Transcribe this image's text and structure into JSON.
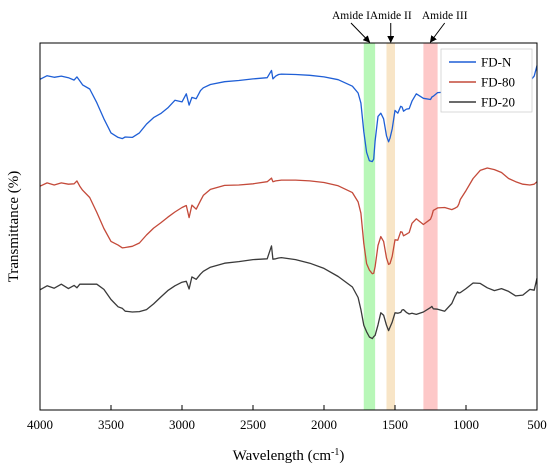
{
  "chart_data": {
    "type": "line",
    "title": "",
    "xlabel": "Wavelength",
    "xlabel_unit": "(cm",
    "xlabel_sup": "-1",
    "xlabel_close": ")",
    "ylabel": "Transmittance (%)",
    "xlim": [
      4000,
      500
    ],
    "x_reversed": true,
    "ticks_x": [
      "4000",
      "3500",
      "3000",
      "2500",
      "2000",
      "1500",
      "1000",
      "500"
    ],
    "tick_values_x": [
      4000,
      3500,
      3000,
      2500,
      2000,
      1500,
      1000,
      500
    ],
    "y_tick_labels_shown": false,
    "grid": false,
    "legend_position": "top-right",
    "bands": [
      {
        "label": "Amide I",
        "from": 1720,
        "to": 1640,
        "color": "#7ef07e",
        "opacity": 0.55,
        "label_x": 1810
      },
      {
        "label": "Amide II",
        "from": 1560,
        "to": 1500,
        "color": "#f5dcb4",
        "opacity": 0.75,
        "label_x": 1530
      },
      {
        "label": "Amide III",
        "from": 1300,
        "to": 1200,
        "color": "#fb9a9a",
        "opacity": 0.55,
        "label_x": 1150
      }
    ],
    "series": [
      {
        "name": "FD-N",
        "color": "#1f5fd6",
        "x": [
          4000,
          3950,
          3900,
          3850,
          3800,
          3760,
          3740,
          3720,
          3700,
          3650,
          3600,
          3550,
          3500,
          3450,
          3420,
          3400,
          3350,
          3300,
          3250,
          3200,
          3150,
          3100,
          3050,
          3000,
          2970,
          2950,
          2930,
          2900,
          2870,
          2850,
          2800,
          2700,
          2600,
          2500,
          2400,
          2370,
          2360,
          2340,
          2320,
          2300,
          2200,
          2100,
          2000,
          1900,
          1800,
          1760,
          1740,
          1720,
          1700,
          1680,
          1660,
          1650,
          1640,
          1620,
          1600,
          1580,
          1560,
          1545,
          1535,
          1520,
          1500,
          1480,
          1460,
          1450,
          1440,
          1420,
          1400,
          1380,
          1350,
          1300,
          1250,
          1240,
          1230,
          1200,
          1150,
          1100,
          1080,
          1060,
          1050,
          1040,
          1000,
          950,
          900,
          850,
          800,
          750,
          700,
          650,
          600,
          550,
          520,
          500
        ],
        "y": [
          -1.0,
          -0.1,
          -0.5,
          -0.2,
          -0.6,
          -1.2,
          -0.4,
          -1.4,
          -2.4,
          -3.4,
          -6.8,
          -10.8,
          -14.3,
          -15.4,
          -15.7,
          -15.3,
          -15.4,
          -14.3,
          -12.1,
          -10.5,
          -9.5,
          -8.1,
          -6.2,
          -6.6,
          -4.6,
          -7.4,
          -5.5,
          -5.8,
          -3.8,
          -3.1,
          -2.3,
          -1.6,
          -1.3,
          -0.9,
          -0.6,
          1.2,
          -0.9,
          -0.2,
          0.2,
          0.3,
          0.2,
          0.0,
          -0.4,
          -1.1,
          -2.7,
          -4.4,
          -6.9,
          -14.0,
          -19.1,
          -21.2,
          -21.4,
          -20.8,
          -16.3,
          -10.2,
          -9.4,
          -10.8,
          -15.0,
          -16.5,
          -15.6,
          -13.3,
          -8.7,
          -9.4,
          -7.7,
          -7.9,
          -8.9,
          -8.4,
          -8.3,
          -6.4,
          -4.6,
          -5.7,
          -6.0,
          -5.4,
          -5.2,
          -4.3,
          -4.2,
          -6.0,
          -7.4,
          -7.5,
          -7.5,
          -6.9,
          -4.6,
          -2.6,
          -0.8,
          -0.2,
          0.4,
          0.5,
          -0.6,
          -1.4,
          -1.8,
          -1.5,
          -0.2,
          2.4
        ]
      },
      {
        "name": "FD-80",
        "color": "#c44a3a",
        "x": [
          4000,
          3950,
          3900,
          3850,
          3800,
          3760,
          3740,
          3720,
          3700,
          3650,
          3600,
          3550,
          3500,
          3450,
          3420,
          3400,
          3350,
          3300,
          3250,
          3200,
          3150,
          3100,
          3050,
          3000,
          2970,
          2950,
          2930,
          2900,
          2870,
          2850,
          2800,
          2700,
          2600,
          2500,
          2400,
          2370,
          2360,
          2340,
          2320,
          2300,
          2200,
          2100,
          2000,
          1900,
          1800,
          1760,
          1740,
          1720,
          1700,
          1680,
          1660,
          1650,
          1640,
          1620,
          1600,
          1580,
          1560,
          1545,
          1535,
          1520,
          1500,
          1480,
          1460,
          1450,
          1440,
          1420,
          1400,
          1380,
          1350,
          1300,
          1250,
          1240,
          1230,
          1200,
          1150,
          1100,
          1080,
          1060,
          1050,
          1040,
          1000,
          950,
          900,
          850,
          800,
          750,
          700,
          650,
          600,
          550,
          520,
          500
        ],
        "y": [
          -27.5,
          -26.7,
          -27.2,
          -26.7,
          -27.0,
          -26.9,
          -26.2,
          -27.5,
          -28.5,
          -30.3,
          -34.0,
          -38.0,
          -41.2,
          -42.1,
          -42.8,
          -42.7,
          -42.4,
          -41.6,
          -39.6,
          -37.9,
          -36.6,
          -35.2,
          -33.9,
          -32.8,
          -32.3,
          -35.3,
          -32.2,
          -33.2,
          -31.1,
          -29.8,
          -28.3,
          -27.3,
          -27.2,
          -26.9,
          -26.4,
          -25.5,
          -26.4,
          -26.2,
          -26.1,
          -26.0,
          -26.0,
          -26.2,
          -26.6,
          -27.4,
          -29.1,
          -31.4,
          -34.2,
          -41.7,
          -46.7,
          -48.3,
          -49.2,
          -49.1,
          -47.5,
          -42.2,
          -40.0,
          -41.2,
          -45.3,
          -46.9,
          -46.7,
          -44.9,
          -40.8,
          -40.9,
          -38.8,
          -38.9,
          -39.8,
          -39.4,
          -39.0,
          -36.7,
          -35.6,
          -37.0,
          -35.7,
          -34.8,
          -33.5,
          -32.9,
          -32.8,
          -33.3,
          -33.0,
          -32.6,
          -31.9,
          -30.8,
          -28.6,
          -25.6,
          -23.6,
          -23.0,
          -23.4,
          -24.1,
          -25.6,
          -26.4,
          -27.0,
          -27.2,
          -27.0,
          -26.4
        ]
      },
      {
        "name": "FD-20",
        "color": "#3a3a3a",
        "x": [
          4000,
          3950,
          3900,
          3850,
          3800,
          3760,
          3740,
          3720,
          3700,
          3650,
          3600,
          3550,
          3500,
          3450,
          3420,
          3400,
          3350,
          3300,
          3250,
          3200,
          3150,
          3100,
          3050,
          3000,
          2970,
          2950,
          2930,
          2900,
          2870,
          2850,
          2800,
          2700,
          2600,
          2500,
          2400,
          2370,
          2360,
          2340,
          2320,
          2300,
          2200,
          2100,
          2000,
          1900,
          1800,
          1760,
          1740,
          1720,
          1700,
          1680,
          1660,
          1650,
          1640,
          1620,
          1600,
          1580,
          1560,
          1545,
          1535,
          1520,
          1500,
          1480,
          1460,
          1450,
          1440,
          1420,
          1400,
          1380,
          1350,
          1300,
          1250,
          1240,
          1230,
          1200,
          1150,
          1100,
          1080,
          1060,
          1050,
          1040,
          1000,
          950,
          900,
          850,
          800,
          750,
          700,
          650,
          600,
          550,
          520,
          500
        ],
        "y": [
          -53.2,
          -52.2,
          -52.8,
          -51.8,
          -52.9,
          -52.1,
          -52.7,
          -51.8,
          -51.8,
          -51.8,
          -51.8,
          -53.1,
          -55.6,
          -57.4,
          -57.8,
          -58.5,
          -58.7,
          -58.6,
          -58.1,
          -56.7,
          -55.0,
          -53.4,
          -52.2,
          -51.3,
          -51.1,
          -53.0,
          -50.0,
          -50.6,
          -49.3,
          -48.6,
          -47.6,
          -46.6,
          -46.2,
          -45.7,
          -45.5,
          -42.3,
          -45.6,
          -45.5,
          -45.3,
          -45.2,
          -45.7,
          -46.6,
          -47.9,
          -49.9,
          -52.5,
          -55.1,
          -58.1,
          -62.0,
          -63.6,
          -64.9,
          -65.3,
          -64.8,
          -64.5,
          -61.9,
          -58.9,
          -59.5,
          -62.0,
          -63.3,
          -62.5,
          -61.2,
          -58.9,
          -59.0,
          -58.8,
          -58.2,
          -58.1,
          -58.8,
          -59.2,
          -59.0,
          -59.3,
          -58.7,
          -57.6,
          -57.3,
          -57.9,
          -58.0,
          -58.5,
          -56.6,
          -55.0,
          -53.7,
          -54.0,
          -53.9,
          -52.9,
          -51.5,
          -51.6,
          -52.7,
          -53.4,
          -52.9,
          -53.6,
          -54.7,
          -54.5,
          -53.1,
          -53.3,
          -50.3
        ]
      }
    ]
  }
}
